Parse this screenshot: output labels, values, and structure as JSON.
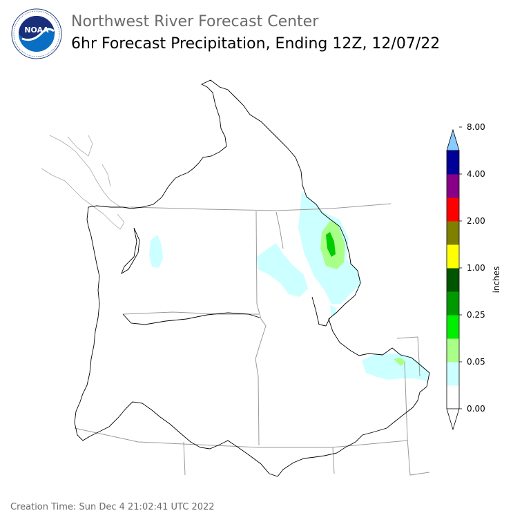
{
  "header": {
    "agency": "Northwest River Forecast Center",
    "product": "6hr Forecast Precipitation, Ending 12Z, 12/07/22"
  },
  "logo": {
    "icon": "noaa-logo-icon",
    "text": "NOAA",
    "ring_text": "NATIONAL OCEANIC AND ATMOSPHERIC ADMINISTRATION · U.S. DEPARTMENT OF COMMERCE"
  },
  "legend": {
    "label": "inches",
    "ticks": [
      "0.00",
      "0.05",
      "0.25",
      "1.00",
      "2.00",
      "4.00",
      "8.00"
    ],
    "colors": [
      "#ffffff",
      "#ccffff",
      "#aaff88",
      "#00ee00",
      "#009900",
      "#005500",
      "#ffff00",
      "#808000",
      "#ff0000",
      "#880088",
      "#000099",
      "#0044ff",
      "#88ccff"
    ]
  },
  "map": {
    "precip_colors": {
      "light": "#ccffff",
      "moderate": "#aaff88",
      "heavy": "#00cc00"
    }
  },
  "footer": {
    "creation": "Creation Time: Sun Dec 4 21:02:41 UTC 2022"
  }
}
